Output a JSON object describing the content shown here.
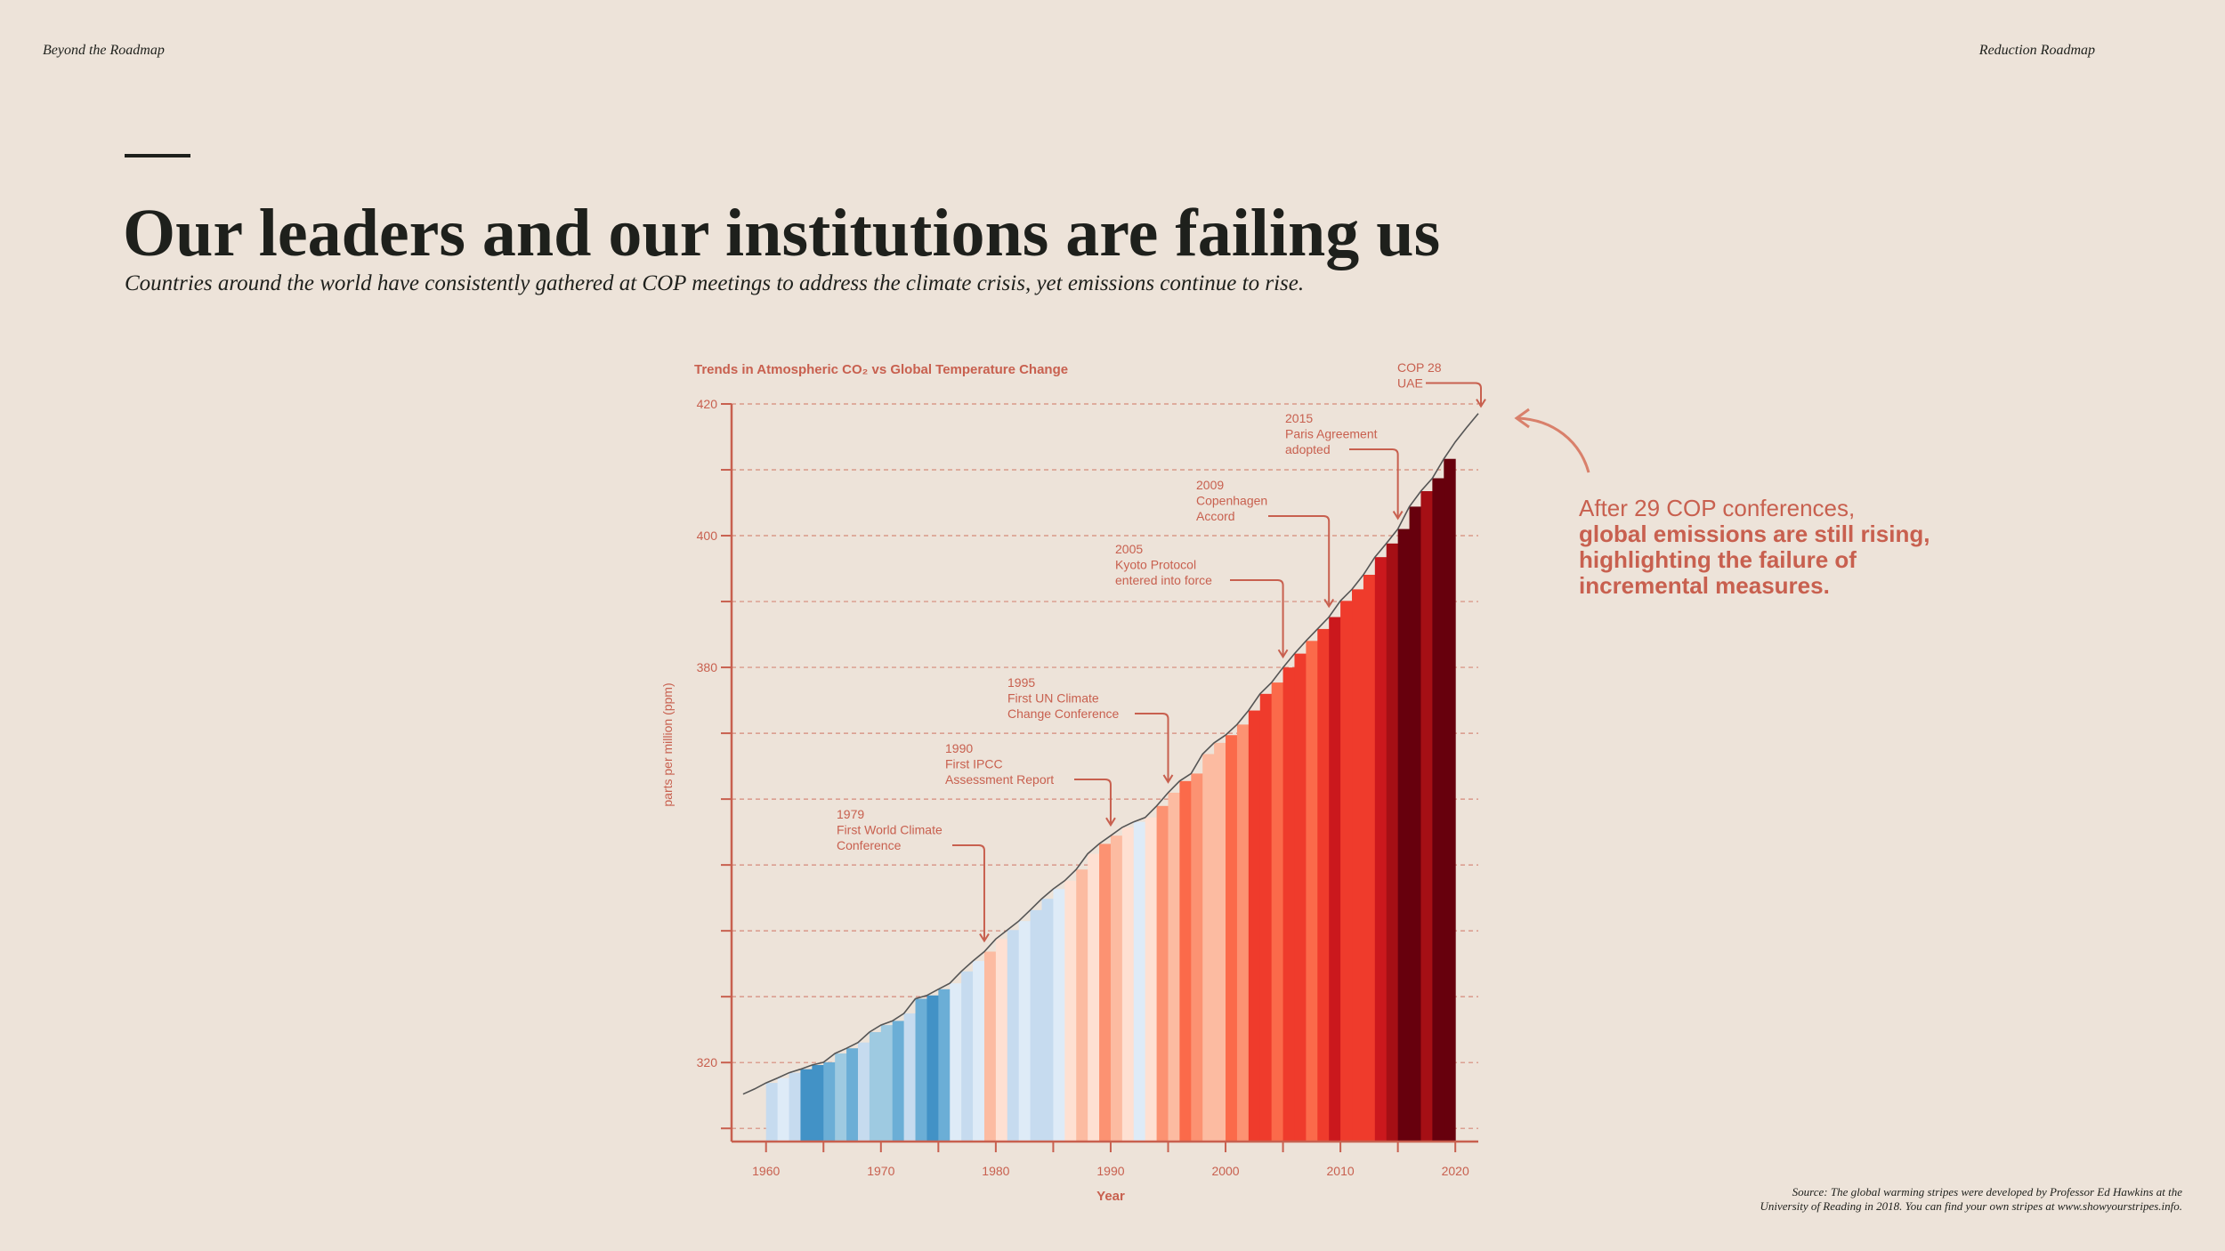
{
  "header": {
    "left": "Beyond the Roadmap",
    "right": "Reduction Roadmap"
  },
  "title": "Our leaders and our institutions are failing us",
  "subtitle": "Countries around the world have consistently gathered at COP meetings to address the climate crisis, yet emissions continue to rise.",
  "callout": {
    "lines": [
      "After 29 COP conferences,"
    ],
    "bold_lines": [
      "global emissions are still rising,",
      "highlighting the failure of",
      "incremental measures."
    ]
  },
  "source": [
    "Source: The global warming stripes were developed by Professor Ed Hawkins at the",
    "University of Reading in 2018. You can find your own stripes at www.showyourstripes.info."
  ],
  "chart_data": {
    "type": "area",
    "title": "Trends in Atmospheric CO₂ vs Global Temperature Change",
    "xlabel": "Year",
    "ylabel": "parts per million (ppm)",
    "x": [
      1958,
      1959,
      1960,
      1961,
      1962,
      1963,
      1964,
      1965,
      1966,
      1967,
      1968,
      1969,
      1970,
      1971,
      1972,
      1973,
      1974,
      1975,
      1976,
      1977,
      1978,
      1979,
      1980,
      1981,
      1982,
      1983,
      1984,
      1985,
      1986,
      1987,
      1988,
      1989,
      1990,
      1991,
      1992,
      1993,
      1994,
      1995,
      1996,
      1997,
      1998,
      1999,
      2000,
      2001,
      2002,
      2003,
      2004,
      2005,
      2006,
      2007,
      2008,
      2009,
      2010,
      2011,
      2012,
      2013,
      2014,
      2015,
      2016,
      2017,
      2018,
      2019,
      2020,
      2021,
      2022
    ],
    "values": [
      315.2,
      315.98,
      316.91,
      317.64,
      318.45,
      318.99,
      319.62,
      320.04,
      321.38,
      322.16,
      323.04,
      324.62,
      325.68,
      326.32,
      327.46,
      329.68,
      330.19,
      331.13,
      332.03,
      333.84,
      335.41,
      336.84,
      338.76,
      340.12,
      341.48,
      343.15,
      344.87,
      346.35,
      347.61,
      349.31,
      351.69,
      353.2,
      354.45,
      355.7,
      356.54,
      357.21,
      358.96,
      360.97,
      362.74,
      363.88,
      366.84,
      368.54,
      369.71,
      371.32,
      373.45,
      375.98,
      377.7,
      379.98,
      382.09,
      384.02,
      385.83,
      387.64,
      390.1,
      391.85,
      394.06,
      396.74,
      398.81,
      401.01,
      404.41,
      406.76,
      408.72,
      411.66,
      414.24,
      416.45,
      418.56
    ],
    "stripe_colors": [
      null,
      null,
      "#c6dbef",
      "#deebf7",
      "#c6dbef",
      "#4292c6",
      "#4292c6",
      "#6baed6",
      "#9ecae1",
      "#6baed6",
      "#c6dbef",
      "#9ecae1",
      "#9ecae1",
      "#6baed6",
      "#c6dbef",
      "#6baed6",
      "#4292c6",
      "#6baed6",
      "#deebf7",
      "#c6dbef",
      "#deebf7",
      "#fcbba1",
      "#fee0d2",
      "#c6dbef",
      "#deebf7",
      "#c6dbef",
      "#c6dbef",
      "#deebf7",
      "#fee0d2",
      "#fcbba1",
      "#fee0d2",
      "#fc9272",
      "#fcbba1",
      "#fee0d2",
      "#deebf7",
      "#fee0d2",
      "#fc9272",
      "#fcbba1",
      "#fb6a4a",
      "#fc9272",
      "#fcbba1",
      "#fcbba1",
      "#fb6a4a",
      "#fc9272",
      "#ef3b2c",
      "#ef3b2c",
      "#fb6a4a",
      "#ef3b2c",
      "#ef3b2c",
      "#fb6a4a",
      "#ef3b2c",
      "#cb181d",
      "#ef3b2c",
      "#ef3b2c",
      "#ef3b2c",
      "#cb181d",
      "#a50f15",
      "#67000d",
      "#67000d",
      "#a50f15",
      "#67000d",
      "#67000d",
      null,
      null,
      null
    ],
    "line_color": "#555555",
    "axis_color": "#c8604f",
    "grid": true,
    "xlim": [
      1957,
      2022
    ],
    "ylim": [
      308,
      420
    ],
    "xticks": [
      1960,
      {
        "value": 1965,
        "label": null
      },
      1970,
      {
        "value": 1975,
        "label": null
      },
      1980,
      {
        "value": 1985,
        "label": null
      },
      1990,
      {
        "value": 1995,
        "label": null
      },
      2000,
      {
        "value": 2005,
        "label": null
      },
      2010,
      {
        "value": 2015,
        "label": null
      },
      2020
    ],
    "yticks": [
      {
        "value": 310,
        "label": null
      },
      320,
      {
        "value": 330,
        "label": null
      },
      {
        "value": 340,
        "label": null
      },
      {
        "value": 350,
        "label": null
      },
      {
        "value": 360,
        "label": null
      },
      {
        "value": 370,
        "label": null
      },
      380,
      {
        "value": 390,
        "label": null
      },
      400,
      {
        "value": 410,
        "label": null
      },
      420
    ],
    "annotations": [
      {
        "year": 1979,
        "text": [
          "First World Climate",
          "Conference"
        ]
      },
      {
        "year": 1990,
        "text": [
          "First IPCC",
          "Assessment Report"
        ]
      },
      {
        "year": 1995,
        "text": [
          "First UN Climate",
          "Change Conference"
        ]
      },
      {
        "year": 2005,
        "text": [
          "Kyoto Protocol",
          "entered into force"
        ]
      },
      {
        "year": 2009,
        "text": [
          "Copenhagen",
          "Accord"
        ]
      },
      {
        "year": 2015,
        "text": [
          "Paris Agreement",
          "adopted"
        ]
      },
      {
        "text": [
          "COP 28",
          "UAE"
        ]
      }
    ]
  }
}
